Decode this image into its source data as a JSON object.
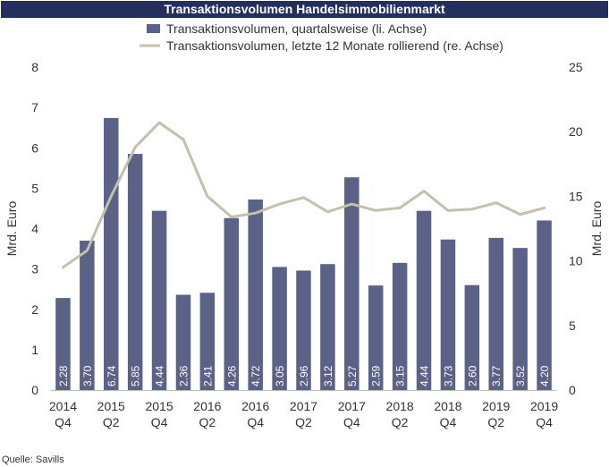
{
  "chart_data": {
    "type": "bar",
    "title": "Transaktionsvolumen Handelsimmobilienmarkt",
    "categories": [
      [
        "2014",
        "Q4"
      ],
      [
        "",
        ""
      ],
      [
        "2015",
        "Q2"
      ],
      [
        "",
        ""
      ],
      [
        "2015",
        "Q4"
      ],
      [
        "",
        ""
      ],
      [
        "2016",
        "Q2"
      ],
      [
        "",
        ""
      ],
      [
        "2016",
        "Q4"
      ],
      [
        "",
        ""
      ],
      [
        "2017",
        "Q2"
      ],
      [
        "",
        ""
      ],
      [
        "2017",
        "Q4"
      ],
      [
        "",
        ""
      ],
      [
        "2018",
        "Q2"
      ],
      [
        "",
        ""
      ],
      [
        "2018",
        "Q4"
      ],
      [
        "",
        ""
      ],
      [
        "2019",
        "Q2"
      ],
      [
        "",
        ""
      ],
      [
        "2019",
        "Q4"
      ]
    ],
    "series": [
      {
        "name": "Transaktionsvolumen, quartalsweise (li. Achse)",
        "type": "bar",
        "axis": "left",
        "color": "#5b6287",
        "values": [
          2.28,
          3.7,
          6.74,
          5.85,
          4.44,
          2.36,
          2.41,
          4.26,
          4.72,
          3.05,
          2.96,
          3.12,
          5.27,
          2.59,
          3.15,
          4.44,
          3.73,
          2.6,
          3.77,
          3.52,
          4.2
        ],
        "labels": [
          "2.28",
          "3.70",
          "6.74",
          "5.85",
          "4.44",
          "2.36",
          "2.41",
          "4.26",
          "4.72",
          "3.05",
          "2.96",
          "3.12",
          "5.27",
          "2.59",
          "3.15",
          "4.44",
          "3.73",
          "2.60",
          "3.77",
          "3.52",
          "4.20"
        ]
      },
      {
        "name": "Transaktionsvolumen, letzte 12 Monate rollierend (re. Achse)",
        "type": "line",
        "axis": "right",
        "color": "#c3c0ab",
        "values": [
          9.5,
          10.8,
          15.0,
          18.8,
          20.7,
          19.4,
          15.0,
          13.4,
          13.7,
          14.4,
          14.9,
          13.8,
          14.4,
          13.9,
          14.1,
          15.4,
          13.9,
          14.0,
          14.5,
          13.6,
          14.1
        ]
      }
    ],
    "ylabel": "Mrd. Euro",
    "y2label": "Mrd. Euro",
    "ylim": [
      0,
      8
    ],
    "y2lim": [
      0,
      25
    ],
    "yticks": [
      "0",
      "1",
      "2",
      "3",
      "4",
      "5",
      "6",
      "7",
      "8"
    ],
    "y2ticks": [
      "0",
      "5",
      "10",
      "15",
      "20",
      "25"
    ],
    "grid": false,
    "legend_position": "top",
    "source": "Quelle: Savills"
  }
}
